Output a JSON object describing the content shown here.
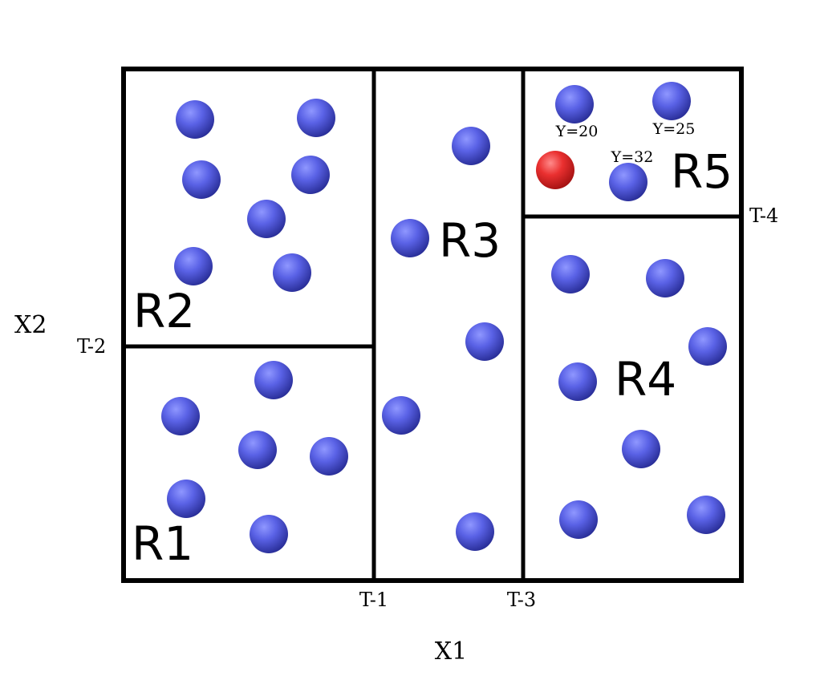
{
  "axes": {
    "x_label": "X1",
    "y_label": "X2"
  },
  "thresholds": {
    "t1": "T-1",
    "t2": "T-2",
    "t3": "T-3",
    "t4": "T-4"
  },
  "regions": {
    "r1": "R1",
    "r2": "R2",
    "r3": "R3",
    "r4": "R4",
    "r5": "R5"
  },
  "point_labels": {
    "p1": "Y=20",
    "p2": "Y=25",
    "p3": "Y=32"
  },
  "colors": {
    "point_blue": "#4a50dc",
    "point_red": "#e3262a",
    "line": "#000000"
  }
}
